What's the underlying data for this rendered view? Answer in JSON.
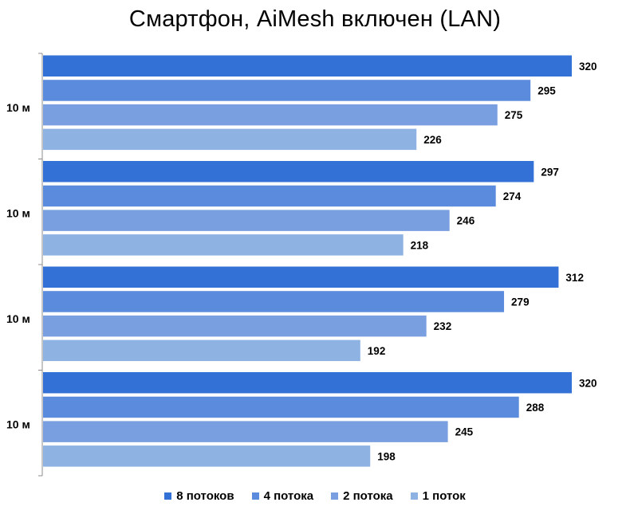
{
  "chart_data": {
    "type": "bar",
    "orientation": "horizontal",
    "title": "Смартфон, AiMesh включен (LAN)",
    "categories": [
      "10 м",
      "10 м",
      "10 м",
      "10 м"
    ],
    "xlim": [
      0,
      330
    ],
    "grid": false,
    "legend_position": "bottom",
    "series": [
      {
        "name": "8 потоков",
        "color": "#3371D6",
        "values": [
          320,
          297,
          312,
          320
        ]
      },
      {
        "name": "4 потока",
        "color": "#5B8BDC",
        "values": [
          295,
          274,
          279,
          288
        ]
      },
      {
        "name": "2 потока",
        "color": "#7A9FE0",
        "values": [
          275,
          246,
          232,
          245
        ]
      },
      {
        "name": "1 поток",
        "color": "#8EB3E3",
        "values": [
          226,
          218,
          192,
          198
        ]
      }
    ]
  }
}
